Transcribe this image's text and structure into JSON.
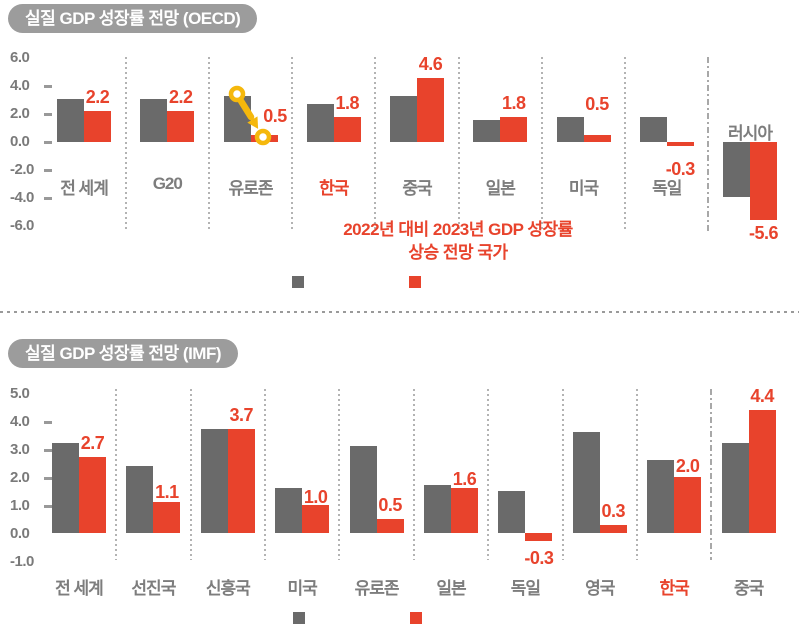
{
  "colors": {
    "bar_gray": "#6a6a6a",
    "bar_red": "#e8432c",
    "badge_bg": "#9c9c9c",
    "badge_text": "#ffffff",
    "axis_text": "#7a7a7a",
    "category_text": "#7d7d7d",
    "highlight_text": "#e8432c",
    "arrow_yellow": "#f5b80c",
    "divider": "#b3b3b3"
  },
  "chart_data": [
    {
      "type": "bar",
      "title": "실질 GDP 성장률 전망 (OECD)",
      "categories": [
        "전 세계",
        "G20",
        "유로존",
        "한국",
        "중국",
        "일본",
        "미국",
        "독일",
        "러시아"
      ],
      "highlight_index": 3,
      "series": [
        {
          "id": "gray",
          "color": "#6a6a6a",
          "values": [
            3.1,
            3.1,
            3.3,
            2.7,
            3.3,
            1.6,
            1.8,
            1.8,
            -3.9
          ]
        },
        {
          "id": "red",
          "color": "#e8432c",
          "values": [
            2.2,
            2.2,
            0.5,
            1.8,
            4.6,
            1.8,
            0.5,
            -0.3,
            -5.6
          ]
        }
      ],
      "value_labels": [
        "2.2",
        "2.2",
        "0.5",
        "1.8",
        "4.6",
        "1.8",
        "0.5",
        "-0.3",
        "-5.6"
      ],
      "y_ticks": [
        "6.0",
        "4.0",
        "2.0",
        "0.0",
        "-2.0",
        "-4.0",
        "-6.0"
      ],
      "ylim": [
        -6,
        6
      ],
      "grid": false,
      "legend": [
        {
          "color": "#6a6a6a",
          "label": ""
        },
        {
          "color": "#e8432c",
          "label": ""
        }
      ],
      "annotation": {
        "lines": [
          "2022년 대비 2023년 GDP 성장률",
          "상승 전망 국가"
        ],
        "color": "#e8432c"
      },
      "arrow_highlight": {
        "category": "유로존",
        "color": "#f5b80c",
        "from_series": "gray",
        "to_series": "red"
      }
    },
    {
      "type": "bar",
      "title": "실질 GDP 성장률 전망 (IMF)",
      "categories": [
        "전 세계",
        "선진국",
        "신흥국",
        "미국",
        "유로존",
        "일본",
        "독일",
        "영국",
        "한국",
        "중국"
      ],
      "highlight_index": 8,
      "series": [
        {
          "id": "gray",
          "color": "#6a6a6a",
          "values": [
            3.2,
            2.4,
            3.7,
            1.6,
            3.1,
            1.7,
            1.5,
            3.6,
            2.6,
            3.2
          ]
        },
        {
          "id": "red",
          "color": "#e8432c",
          "values": [
            2.7,
            1.1,
            3.7,
            1.0,
            0.5,
            1.6,
            -0.3,
            0.3,
            2.0,
            4.4
          ]
        }
      ],
      "value_labels": [
        "2.7",
        "1.1",
        "3.7",
        "1.0",
        "0.5",
        "1.6",
        "-0.3",
        "0.3",
        "2.0",
        "4.4"
      ],
      "y_ticks": [
        "5.0",
        "4.0",
        "3.0",
        "2.0",
        "1.0",
        "0.0",
        "-1.0"
      ],
      "ylim": [
        -1,
        5
      ],
      "grid": false,
      "legend": [
        {
          "color": "#6a6a6a",
          "label": ""
        },
        {
          "color": "#e8432c",
          "label": ""
        }
      ]
    }
  ]
}
